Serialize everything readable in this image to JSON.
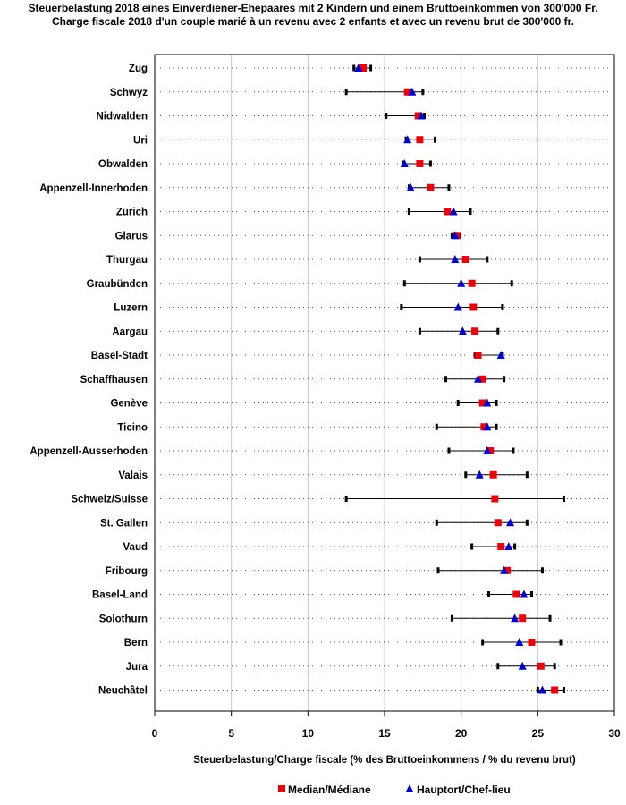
{
  "chart_data": {
    "type": "range-dot",
    "title": "Steuerbelastung 2018 eines Einverdiener-Ehepaares mit 2 Kindern und einem Bruttoeinkommen von 300'000 Fr.",
    "subtitle": "Charge fiscale 2018 d'un couple marié à un revenu avec 2 enfants et avec un revenu brut de 300'000 fr.",
    "xlabel": "Steuerbelastung/Charge fiscale (% des Bruttoeinkommens / % du revenu brut)",
    "xlim": [
      0,
      30
    ],
    "xticks": [
      0,
      5,
      10,
      15,
      20,
      25,
      30
    ],
    "colors": {
      "median": "#e8000b",
      "hauptort": "#0000cc",
      "range": "#000000"
    },
    "legend": [
      {
        "key": "median",
        "label": "Median/Médiane"
      },
      {
        "key": "hauptort",
        "label": "Hauptort/Chef-lieu"
      }
    ],
    "rows": [
      {
        "name": "Zug",
        "min": 13.0,
        "max": 14.1,
        "median": 13.6,
        "hauptort": 13.3
      },
      {
        "name": "Schwyz",
        "min": 12.5,
        "max": 17.5,
        "median": 16.5,
        "hauptort": 16.8
      },
      {
        "name": "Nidwalden",
        "min": 15.1,
        "max": 17.6,
        "median": 17.2,
        "hauptort": 17.4
      },
      {
        "name": "Uri",
        "min": 16.4,
        "max": 18.3,
        "median": 17.3,
        "hauptort": 16.5
      },
      {
        "name": "Obwalden",
        "min": 16.2,
        "max": 18.0,
        "median": 17.3,
        "hauptort": 16.3
      },
      {
        "name": "Appenzell-Innerhoden",
        "min": 16.6,
        "max": 19.2,
        "median": 18.0,
        "hauptort": 16.7
      },
      {
        "name": "Zürich",
        "min": 16.6,
        "max": 20.6,
        "median": 19.1,
        "hauptort": 19.5
      },
      {
        "name": "Glarus",
        "min": 19.4,
        "max": 19.9,
        "median": 19.7,
        "hauptort": 19.6
      },
      {
        "name": "Thurgau",
        "min": 17.3,
        "max": 21.7,
        "median": 20.3,
        "hauptort": 19.6
      },
      {
        "name": "Graubünden",
        "min": 16.3,
        "max": 23.3,
        "median": 20.7,
        "hauptort": 20.0
      },
      {
        "name": "Luzern",
        "min": 16.1,
        "max": 22.7,
        "median": 20.8,
        "hauptort": 19.8
      },
      {
        "name": "Aargau",
        "min": 17.3,
        "max": 22.4,
        "median": 20.9,
        "hauptort": 20.1
      },
      {
        "name": "Basel-Stadt",
        "min": 20.9,
        "max": 22.7,
        "median": 21.1,
        "hauptort": 22.6
      },
      {
        "name": "Schaffhausen",
        "min": 19.0,
        "max": 22.8,
        "median": 21.4,
        "hauptort": 21.1
      },
      {
        "name": "Genève",
        "min": 19.8,
        "max": 22.3,
        "median": 21.4,
        "hauptort": 21.7
      },
      {
        "name": "Ticino",
        "min": 18.4,
        "max": 22.3,
        "median": 21.5,
        "hauptort": 21.7
      },
      {
        "name": "Appenzell-Ausserhoden",
        "min": 19.2,
        "max": 23.4,
        "median": 21.9,
        "hauptort": 21.7
      },
      {
        "name": "Valais",
        "min": 20.3,
        "max": 24.3,
        "median": 22.1,
        "hauptort": 21.2
      },
      {
        "name": "Schweiz/Suisse",
        "min": 12.5,
        "max": 26.7,
        "median": 22.2,
        "hauptort": null
      },
      {
        "name": "St. Gallen",
        "min": 18.4,
        "max": 24.3,
        "median": 22.4,
        "hauptort": 23.2
      },
      {
        "name": "Vaud",
        "min": 20.7,
        "max": 23.5,
        "median": 22.6,
        "hauptort": 23.1
      },
      {
        "name": "Fribourg",
        "min": 18.5,
        "max": 25.3,
        "median": 23.0,
        "hauptort": 22.8
      },
      {
        "name": "Basel-Land",
        "min": 21.8,
        "max": 24.6,
        "median": 23.6,
        "hauptort": 24.1
      },
      {
        "name": "Solothurn",
        "min": 19.4,
        "max": 25.8,
        "median": 24.0,
        "hauptort": 23.5
      },
      {
        "name": "Bern",
        "min": 21.4,
        "max": 26.5,
        "median": 24.6,
        "hauptort": 23.8
      },
      {
        "name": "Jura",
        "min": 22.4,
        "max": 26.1,
        "median": 25.2,
        "hauptort": 24.0
      },
      {
        "name": "Neuchâtel",
        "min": 25.0,
        "max": 26.7,
        "median": 26.1,
        "hauptort": 25.3
      }
    ]
  }
}
